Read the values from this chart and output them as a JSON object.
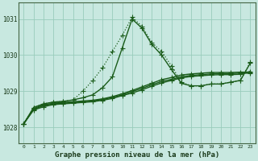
{
  "background_color": "#c8e8e0",
  "plot_bg_color": "#c8e8e0",
  "grid_color": "#99ccbb",
  "line_color": "#1a5c1a",
  "xlabel": "Graphe pression niveau de la mer (hPa)",
  "xlabel_fontsize": 6.5,
  "xlim": [
    -0.5,
    23.5
  ],
  "ylim": [
    1027.55,
    1031.45
  ],
  "yticks": [
    1028,
    1029,
    1030,
    1031
  ],
  "xticks": [
    0,
    1,
    2,
    3,
    4,
    5,
    6,
    7,
    8,
    9,
    10,
    11,
    12,
    13,
    14,
    15,
    16,
    17,
    18,
    19,
    20,
    21,
    22,
    23
  ],
  "series": [
    {
      "x": [
        0,
        1,
        2,
        3,
        4,
        5,
        6,
        7,
        8,
        9,
        10,
        11,
        12,
        13,
        14,
        15,
        16,
        17,
        18,
        19,
        20,
        21,
        22,
        23
      ],
      "y": [
        1028.1,
        1028.55,
        1028.65,
        1028.7,
        1028.72,
        1028.76,
        1029.0,
        1029.3,
        1029.65,
        1030.1,
        1030.55,
        1031.05,
        1030.8,
        1030.35,
        1030.1,
        1029.7,
        1029.25,
        1029.15,
        1029.15,
        1029.2,
        1029.2,
        1029.25,
        1029.3,
        1029.8
      ],
      "marker": "+",
      "markersize": 4,
      "linewidth": 0.9,
      "linestyle": ":"
    },
    {
      "x": [
        0,
        1,
        2,
        3,
        4,
        5,
        6,
        7,
        8,
        9,
        10,
        11,
        12,
        13,
        14,
        15,
        16,
        17,
        18,
        19,
        20,
        21,
        22,
        23
      ],
      "y": [
        1028.1,
        1028.55,
        1028.65,
        1028.7,
        1028.72,
        1028.76,
        1028.82,
        1028.9,
        1029.1,
        1029.4,
        1030.2,
        1031.0,
        1030.75,
        1030.3,
        1030.0,
        1029.6,
        1029.22,
        1029.15,
        1029.15,
        1029.2,
        1029.2,
        1029.25,
        1029.3,
        1029.78
      ],
      "marker": "+",
      "markersize": 4,
      "linewidth": 1.0,
      "linestyle": "-"
    },
    {
      "x": [
        0,
        1,
        2,
        3,
        4,
        5,
        6,
        7,
        8,
        9,
        10,
        11,
        12,
        13,
        14,
        15,
        16,
        17,
        18,
        19,
        20,
        21,
        22,
        23
      ],
      "y": [
        1028.1,
        1028.52,
        1028.62,
        1028.67,
        1028.69,
        1028.71,
        1028.73,
        1028.75,
        1028.79,
        1028.85,
        1028.93,
        1029.02,
        1029.12,
        1029.22,
        1029.32,
        1029.38,
        1029.45,
        1029.48,
        1029.5,
        1029.52,
        1029.52,
        1029.52,
        1029.53,
        1029.53
      ],
      "marker": "+",
      "markersize": 4,
      "linewidth": 1.0,
      "linestyle": "-"
    },
    {
      "x": [
        0,
        1,
        2,
        3,
        4,
        5,
        6,
        7,
        8,
        9,
        10,
        11,
        12,
        13,
        14,
        15,
        16,
        17,
        18,
        19,
        20,
        21,
        22,
        23
      ],
      "y": [
        1028.1,
        1028.5,
        1028.6,
        1028.65,
        1028.67,
        1028.69,
        1028.71,
        1028.73,
        1028.77,
        1028.83,
        1028.9,
        1028.99,
        1029.08,
        1029.18,
        1029.27,
        1029.33,
        1029.4,
        1029.44,
        1029.46,
        1029.48,
        1029.49,
        1029.49,
        1029.5,
        1029.5
      ],
      "marker": "+",
      "markersize": 4,
      "linewidth": 1.0,
      "linestyle": "-"
    },
    {
      "x": [
        0,
        1,
        2,
        3,
        4,
        5,
        6,
        7,
        8,
        9,
        10,
        11,
        12,
        13,
        14,
        15,
        16,
        17,
        18,
        19,
        20,
        21,
        22,
        23
      ],
      "y": [
        1028.1,
        1028.48,
        1028.57,
        1028.63,
        1028.65,
        1028.67,
        1028.69,
        1028.71,
        1028.75,
        1028.8,
        1028.88,
        1028.95,
        1029.04,
        1029.14,
        1029.23,
        1029.3,
        1029.37,
        1029.41,
        1029.43,
        1029.45,
        1029.46,
        1029.46,
        1029.47,
        1029.55
      ],
      "marker": "+",
      "markersize": 4,
      "linewidth": 1.0,
      "linestyle": "-"
    }
  ]
}
